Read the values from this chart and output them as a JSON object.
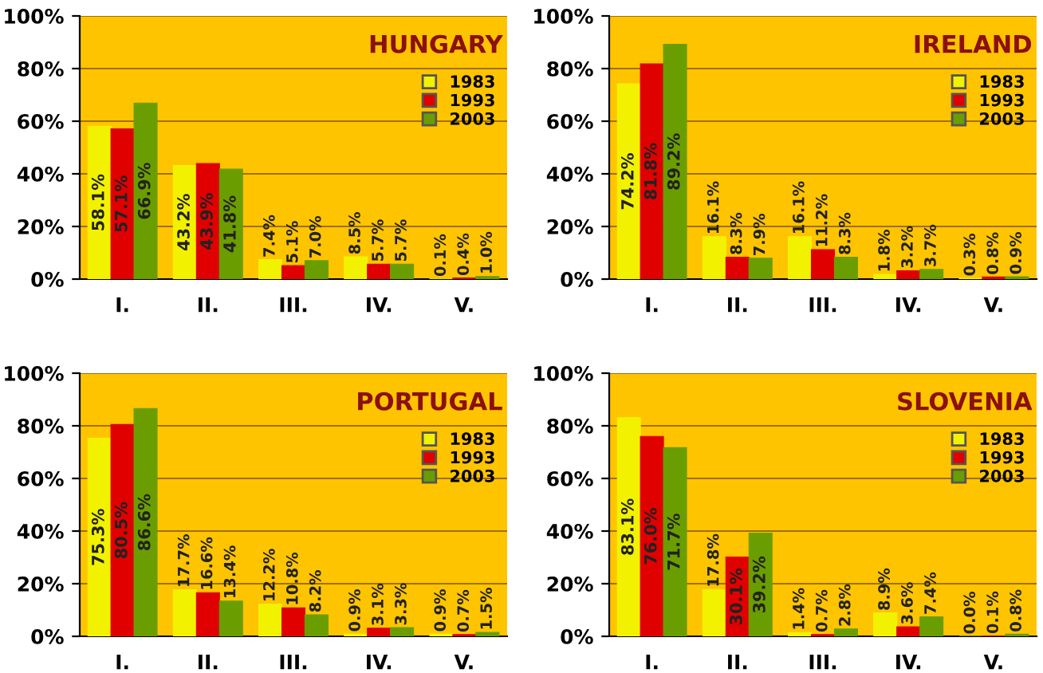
{
  "chart_data": [
    {
      "type": "bar",
      "title": "HUNGARY",
      "categories": [
        "I.",
        "II.",
        "III.",
        "IV.",
        "V."
      ],
      "ylim": [
        0,
        100
      ],
      "yticks": [
        {
          "value": 0,
          "label": "0%"
        },
        {
          "value": 20,
          "label": "20%"
        },
        {
          "value": 40,
          "label": "40%"
        },
        {
          "value": 60,
          "label": "60%"
        },
        {
          "value": 80,
          "label": "80%"
        },
        {
          "value": 100,
          "label": "100%"
        }
      ],
      "grid": "y",
      "legend": "top right",
      "series": [
        {
          "name": "1983",
          "color": "#f2f200",
          "values": [
            58.1,
            43.2,
            7.4,
            8.5,
            0.1
          ],
          "value_labels": [
            "58.1%",
            "43.2%",
            "7.4%",
            "8.5%",
            "0.1%"
          ]
        },
        {
          "name": "1993",
          "color": "#e00000",
          "values": [
            57.1,
            43.9,
            5.1,
            5.7,
            0.4
          ],
          "value_labels": [
            "57.1%",
            "43.9%",
            "5.1%",
            "5.7%",
            "0.4%"
          ]
        },
        {
          "name": "2003",
          "color": "#6a9e00",
          "values": [
            66.9,
            41.8,
            7.0,
            5.7,
            1.0
          ],
          "value_labels": [
            "66.9%",
            "41.8%",
            "7.0%",
            "5.7%",
            "1.0%"
          ]
        }
      ]
    },
    {
      "type": "bar",
      "title": "IRELAND",
      "categories": [
        "I.",
        "II.",
        "III.",
        "IV.",
        "V."
      ],
      "ylim": [
        0,
        100
      ],
      "yticks": [
        {
          "value": 0,
          "label": "0%"
        },
        {
          "value": 20,
          "label": "20%"
        },
        {
          "value": 40,
          "label": "40%"
        },
        {
          "value": 60,
          "label": "60%"
        },
        {
          "value": 80,
          "label": "80%"
        },
        {
          "value": 100,
          "label": "100%"
        }
      ],
      "grid": "y",
      "legend": "top right",
      "series": [
        {
          "name": "1983",
          "color": "#f2f200",
          "values": [
            74.2,
            16.1,
            16.1,
            1.8,
            0.3
          ],
          "value_labels": [
            "74.2%",
            "16.1%",
            "16.1%",
            "1.8%",
            "0.3%"
          ]
        },
        {
          "name": "1993",
          "color": "#e00000",
          "values": [
            81.8,
            8.3,
            11.2,
            3.2,
            0.8
          ],
          "value_labels": [
            "81.8%",
            "8.3%",
            "11.2%",
            "3.2%",
            "0.8%"
          ]
        },
        {
          "name": "2003",
          "color": "#6a9e00",
          "values": [
            89.2,
            7.9,
            8.3,
            3.7,
            0.9
          ],
          "value_labels": [
            "89.2%",
            "7.9%",
            "8.3%",
            "3.7%",
            "0.9%"
          ]
        }
      ]
    },
    {
      "type": "bar",
      "title": "PORTUGAL",
      "categories": [
        "I.",
        "II.",
        "III.",
        "IV.",
        "V."
      ],
      "ylim": [
        0,
        100
      ],
      "yticks": [
        {
          "value": 0,
          "label": "0%"
        },
        {
          "value": 20,
          "label": "20%"
        },
        {
          "value": 40,
          "label": "40%"
        },
        {
          "value": 60,
          "label": "60%"
        },
        {
          "value": 80,
          "label": "80%"
        },
        {
          "value": 100,
          "label": "100%"
        }
      ],
      "grid": "y",
      "legend": "top right",
      "series": [
        {
          "name": "1983",
          "color": "#f2f200",
          "values": [
            75.3,
            17.7,
            12.2,
            0.9,
            0.9
          ],
          "value_labels": [
            "75.3%",
            "17.7%",
            "12.2%",
            "0.9%",
            "0.9%"
          ]
        },
        {
          "name": "1993",
          "color": "#e00000",
          "values": [
            80.5,
            16.6,
            10.8,
            3.1,
            0.7
          ],
          "value_labels": [
            "80.5%",
            "16.6%",
            "10.8%",
            "3.1%",
            "0.7%"
          ]
        },
        {
          "name": "2003",
          "color": "#6a9e00",
          "values": [
            86.6,
            13.4,
            8.2,
            3.3,
            1.5
          ],
          "value_labels": [
            "86.6%",
            "13.4%",
            "8.2%",
            "3.3%",
            "1.5%"
          ]
        }
      ]
    },
    {
      "type": "bar",
      "title": "SLOVENIA",
      "categories": [
        "I.",
        "II.",
        "III.",
        "IV.",
        "V."
      ],
      "ylim": [
        0,
        100
      ],
      "yticks": [
        {
          "value": 0,
          "label": "0%"
        },
        {
          "value": 20,
          "label": "20%"
        },
        {
          "value": 40,
          "label": "40%"
        },
        {
          "value": 60,
          "label": "60%"
        },
        {
          "value": 80,
          "label": "80%"
        },
        {
          "value": 100,
          "label": "100%"
        }
      ],
      "grid": "y",
      "legend": "top right",
      "series": [
        {
          "name": "1983",
          "color": "#f2f200",
          "values": [
            83.1,
            17.8,
            1.4,
            8.9,
            0.0
          ],
          "value_labels": [
            "83.1%",
            "17.8%",
            "1.4%",
            "8.9%",
            "0.0%"
          ]
        },
        {
          "name": "1993",
          "color": "#e00000",
          "values": [
            76.0,
            30.1,
            0.7,
            3.6,
            0.1
          ],
          "value_labels": [
            "76.0%",
            "30.1%",
            "0.7%",
            "3.6%",
            "0.1%"
          ]
        },
        {
          "name": "2003",
          "color": "#6a9e00",
          "values": [
            71.7,
            39.2,
            2.8,
            7.4,
            0.8
          ],
          "value_labels": [
            "71.7%",
            "39.2%",
            "2.8%",
            "7.4%",
            "0.8%"
          ]
        }
      ]
    }
  ]
}
